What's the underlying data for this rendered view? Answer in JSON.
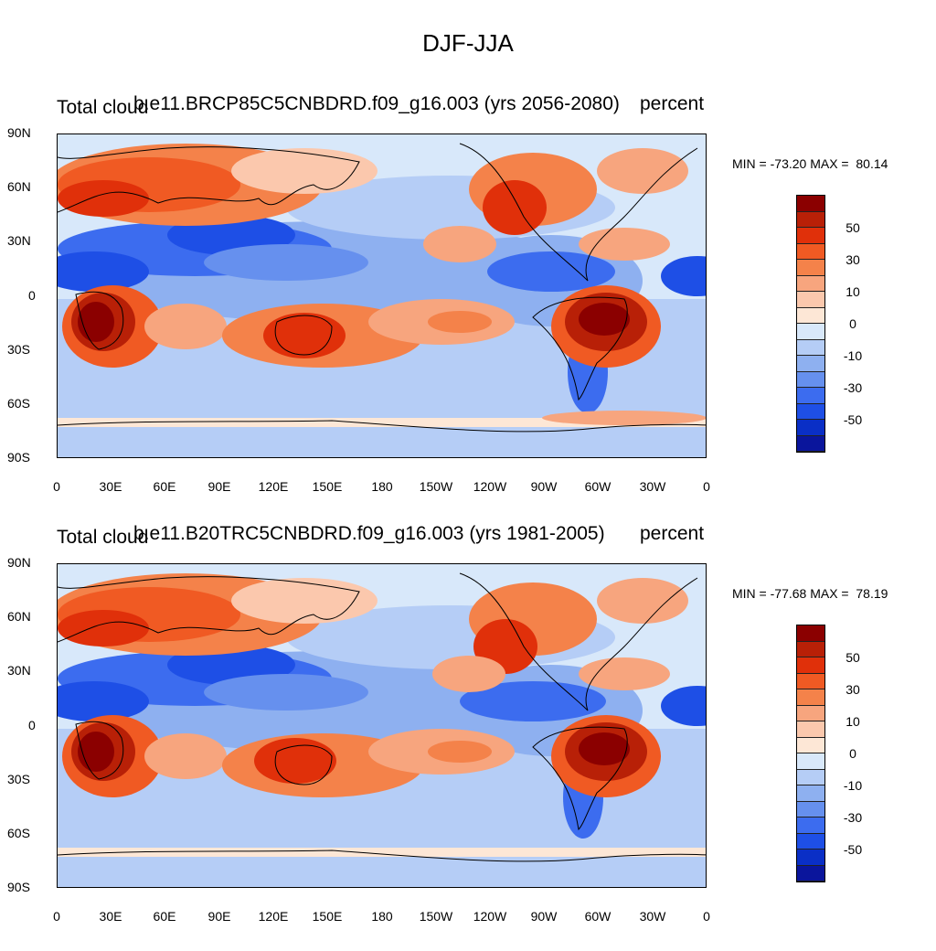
{
  "title": "DJF-JJA",
  "panels": [
    {
      "left_label": "Total cloud",
      "center_label": "b.e11.BRCP85C5CNBDRD.f09_g16.003 (yrs 2056-2080)",
      "right_label": "percent",
      "minmax": "MIN = -73.20 MAX =  80.14",
      "min": -73.2,
      "max": 80.14
    },
    {
      "left_label": "Total cloud",
      "center_label": "b.e11.B20TRC5CNBDRD.f09_g16.003 (yrs 1981-2005)",
      "right_label": "percent",
      "minmax": "MIN = -77.68 MAX =  78.19",
      "min": -77.68,
      "max": 78.19
    }
  ],
  "lat_ticks": [
    "90N",
    "60N",
    "30N",
    "0",
    "30S",
    "60S",
    "90S"
  ],
  "lon_ticks": [
    "0",
    "30E",
    "60E",
    "90E",
    "120E",
    "150E",
    "180",
    "150W",
    "120W",
    "90W",
    "60W",
    "30W",
    "0"
  ],
  "colorbar": {
    "labels": [
      "50",
      "30",
      "10",
      "0",
      "-10",
      "-30",
      "-50"
    ],
    "colors": [
      "#8b0000",
      "#b82007",
      "#e0300a",
      "#f05a23",
      "#f4824a",
      "#f7a57e",
      "#fbc8ad",
      "#fde7d6",
      "#d8e8fa",
      "#b5cdf6",
      "#8eb0f0",
      "#6690ee",
      "#3c6cef",
      "#1e4fe6",
      "#0a2fc6",
      "#0a159c"
    ]
  }
}
